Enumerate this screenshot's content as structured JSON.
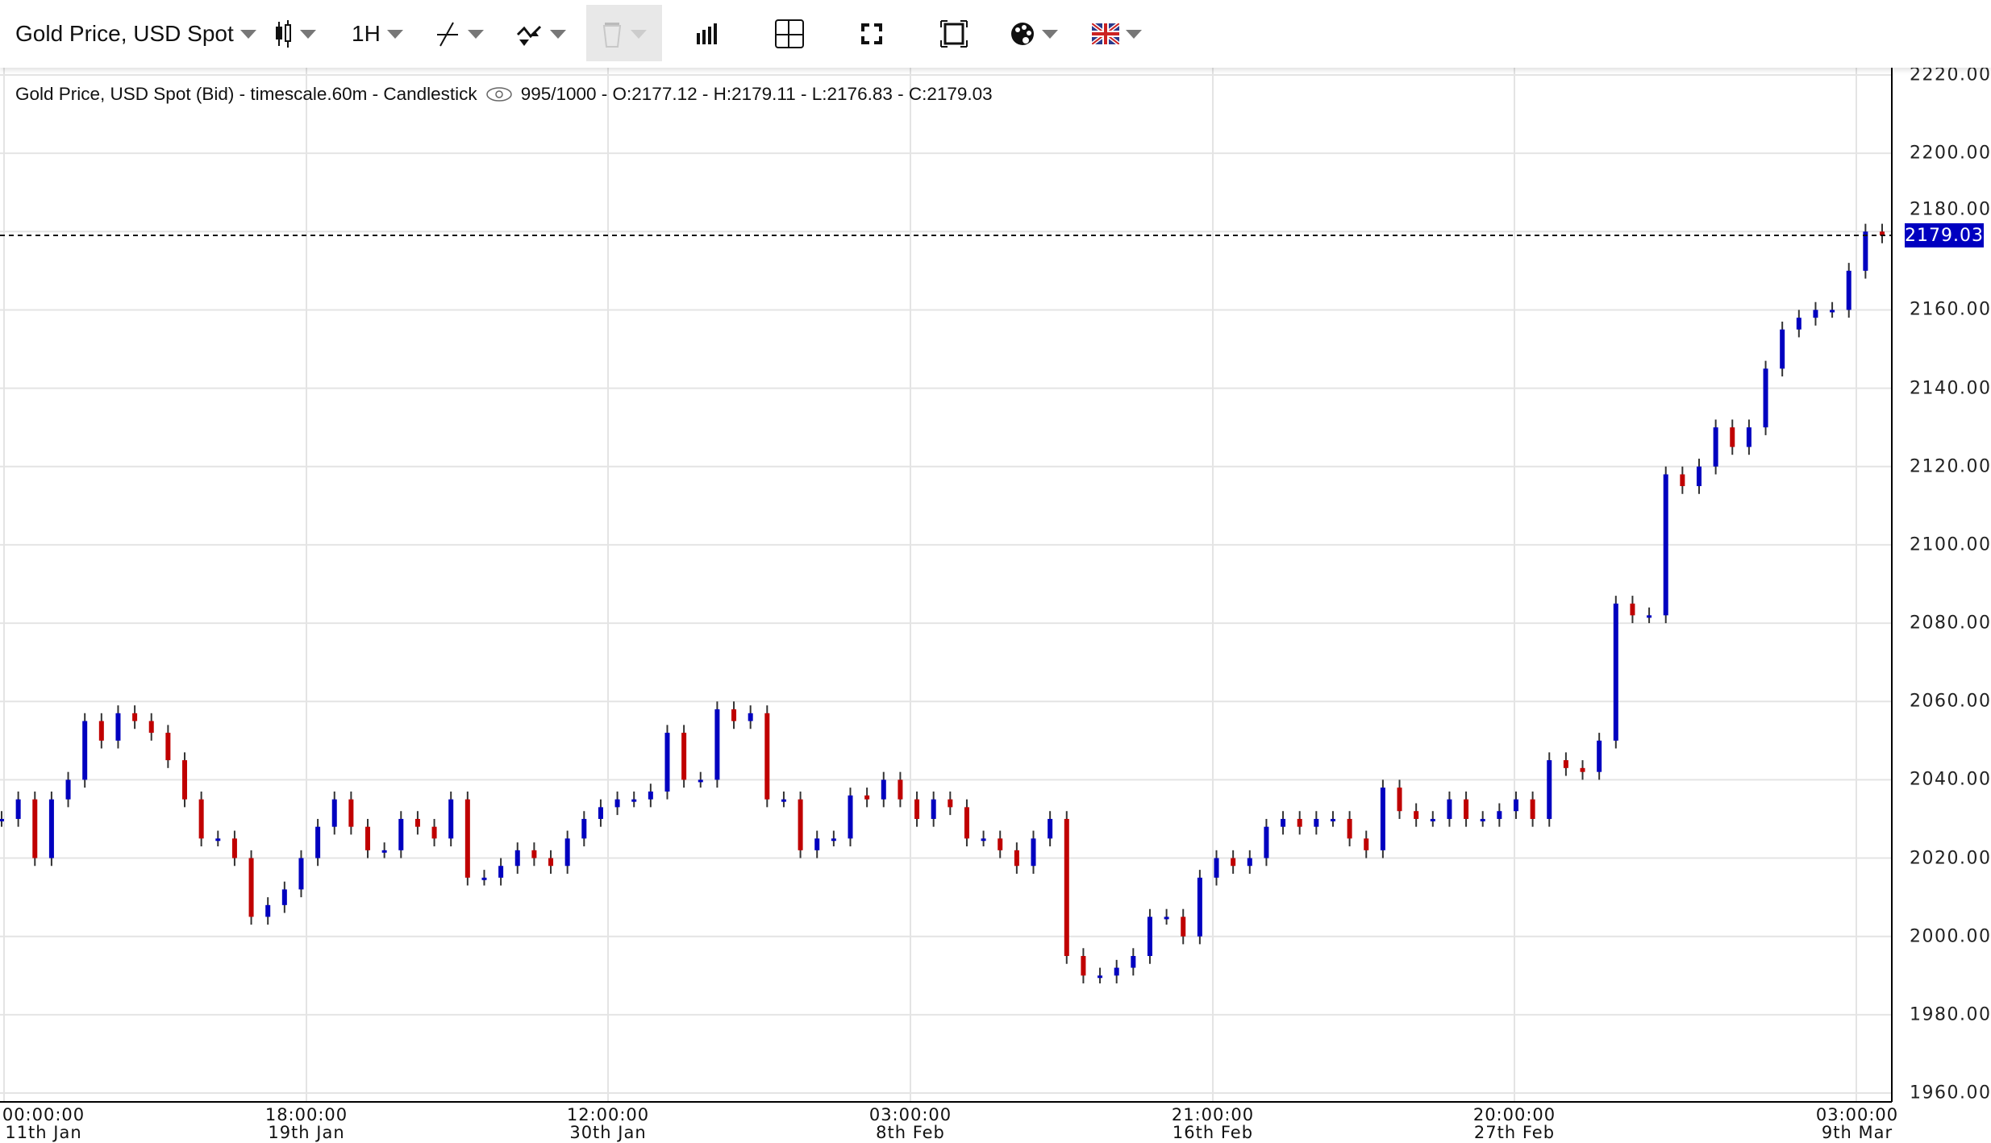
{
  "toolbar": {
    "instrument": "Gold Price, USD Spot",
    "timeframe": "1H",
    "icons": [
      "candlestick-icon",
      "line-draw-icon",
      "indicator-icon",
      "trash-icon",
      "bar-chart-icon",
      "crosshair-icon",
      "fullscreen-icon",
      "frame-icon",
      "palette-icon",
      "uk-flag-icon"
    ]
  },
  "info": {
    "label": "Gold Price, USD Spot (Bid) - timescale.60m - Candlestick",
    "stats": "995/1000 - O:2177.12 - H:2179.11 - L:2176.83 - C:2179.03"
  },
  "colors": {
    "up": "#0000c0",
    "down": "#c00000",
    "wick": "#333333",
    "badge": "#0000c0"
  },
  "chart_data": {
    "type": "candlestick",
    "title": "Gold Price, USD Spot (Bid) - timescale.60m - Candlestick",
    "ylim": [
      1960,
      2220
    ],
    "y_ticks": [
      "2220.00",
      "2200.00",
      "2180.00",
      "2160.00",
      "2140.00",
      "2120.00",
      "2100.00",
      "2080.00",
      "2060.00",
      "2040.00",
      "2020.00",
      "2000.00",
      "1980.00",
      "1960.00"
    ],
    "x_ticks": [
      {
        "time": "00:00:00",
        "date": "11th Jan"
      },
      {
        "time": "18:00:00",
        "date": "19th Jan"
      },
      {
        "time": "12:00:00",
        "date": "30th Jan"
      },
      {
        "time": "03:00:00",
        "date": "8th Feb"
      },
      {
        "time": "21:00:00",
        "date": "16th Feb"
      },
      {
        "time": "20:00:00",
        "date": "27th Feb"
      },
      {
        "time": "03:00:00",
        "date": "9th Mar"
      }
    ],
    "last_price": "2179.03",
    "grid": true,
    "approx_closes": [
      2030,
      2035,
      2020,
      2035,
      2040,
      2055,
      2050,
      2057,
      2055,
      2052,
      2045,
      2035,
      2025,
      2025,
      2020,
      2005,
      2008,
      2012,
      2020,
      2028,
      2035,
      2028,
      2022,
      2022,
      2030,
      2028,
      2025,
      2035,
      2015,
      2015,
      2018,
      2022,
      2020,
      2018,
      2025,
      2030,
      2033,
      2035,
      2035,
      2037,
      2052,
      2040,
      2040,
      2058,
      2055,
      2057,
      2035,
      2035,
      2022,
      2025,
      2025,
      2036,
      2035,
      2040,
      2035,
      2030,
      2035,
      2033,
      2025,
      2025,
      2022,
      2018,
      2025,
      2030,
      1995,
      1990,
      1990,
      1992,
      1995,
      2005,
      2005,
      2000,
      2015,
      2020,
      2018,
      2020,
      2028,
      2030,
      2028,
      2030,
      2030,
      2025,
      2022,
      2038,
      2032,
      2030,
      2030,
      2035,
      2030,
      2030,
      2032,
      2035,
      2030,
      2045,
      2043,
      2042,
      2050,
      2085,
      2082,
      2082,
      2118,
      2115,
      2120,
      2130,
      2125,
      2130,
      2145,
      2155,
      2158,
      2160,
      2160,
      2170,
      2180,
      2179.03
    ]
  }
}
